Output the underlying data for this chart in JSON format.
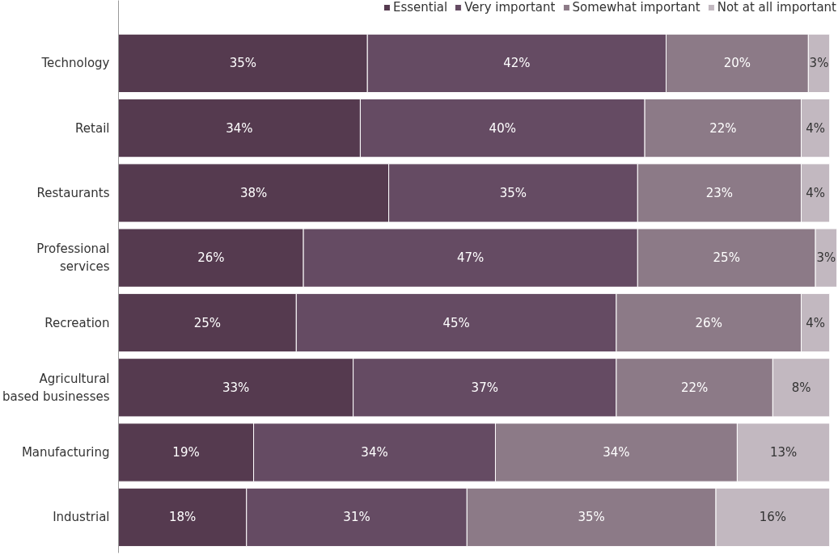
{
  "chart_data": {
    "type": "bar",
    "orientation": "horizontal",
    "stacked": true,
    "legend": "top right",
    "grid": false,
    "categories": [
      "Technology",
      "Retail",
      "Restaurants",
      "Professional services",
      "Recreation",
      "Agricultural based businesses",
      "Manufacturing",
      "Industrial"
    ],
    "series": [
      {
        "name": "Essential",
        "color": "#553a4f",
        "values": [
          35,
          34,
          38,
          26,
          25,
          33,
          19,
          18
        ],
        "value_labels": [
          "35%",
          "34%",
          "38%",
          "26%",
          "25%",
          "33%",
          "19%",
          "18%"
        ]
      },
      {
        "name": "Very important",
        "color": "#654b63",
        "values": [
          42,
          40,
          35,
          47,
          45,
          37,
          34,
          31
        ],
        "value_labels": [
          "42%",
          "40%",
          "35%",
          "47%",
          "45%",
          "37%",
          "34%",
          "31%"
        ]
      },
      {
        "name": "Somewhat important",
        "color": "#8c7a87",
        "values": [
          20,
          22,
          23,
          25,
          26,
          22,
          34,
          35
        ],
        "value_labels": [
          "20%",
          "22%",
          "23%",
          "25%",
          "26%",
          "22%",
          "34%",
          "35%"
        ]
      },
      {
        "name": "Not at all important",
        "color": "#c2b8c0",
        "values": [
          3,
          4,
          4,
          3,
          4,
          8,
          13,
          16
        ],
        "value_labels": [
          "3%",
          "4%",
          "4%",
          "3%",
          "4%",
          "8%",
          "13%",
          "16%"
        ]
      }
    ]
  }
}
